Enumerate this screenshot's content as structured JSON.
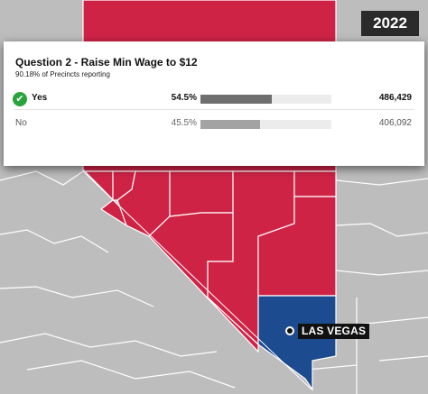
{
  "header": {
    "year": "2022"
  },
  "question": {
    "title": "Question 2 - Raise Min Wage to $12",
    "reporting": "90.18% of Precincts reporting"
  },
  "results": [
    {
      "choice": "Yes",
      "percent": "54.5%",
      "share": 0.545,
      "votes": "486,429",
      "winner": true
    },
    {
      "choice": "No",
      "percent": "45.5%",
      "share": 0.455,
      "votes": "406,092",
      "winner": false
    }
  ],
  "map": {
    "city_label": "LAS VEGAS",
    "colors": {
      "yes": "#cf2346",
      "no": "#1d4b8f",
      "land": "#bfbfbf",
      "border": "#ffffff"
    }
  },
  "icons": {
    "winner": "check-circle-icon"
  }
}
